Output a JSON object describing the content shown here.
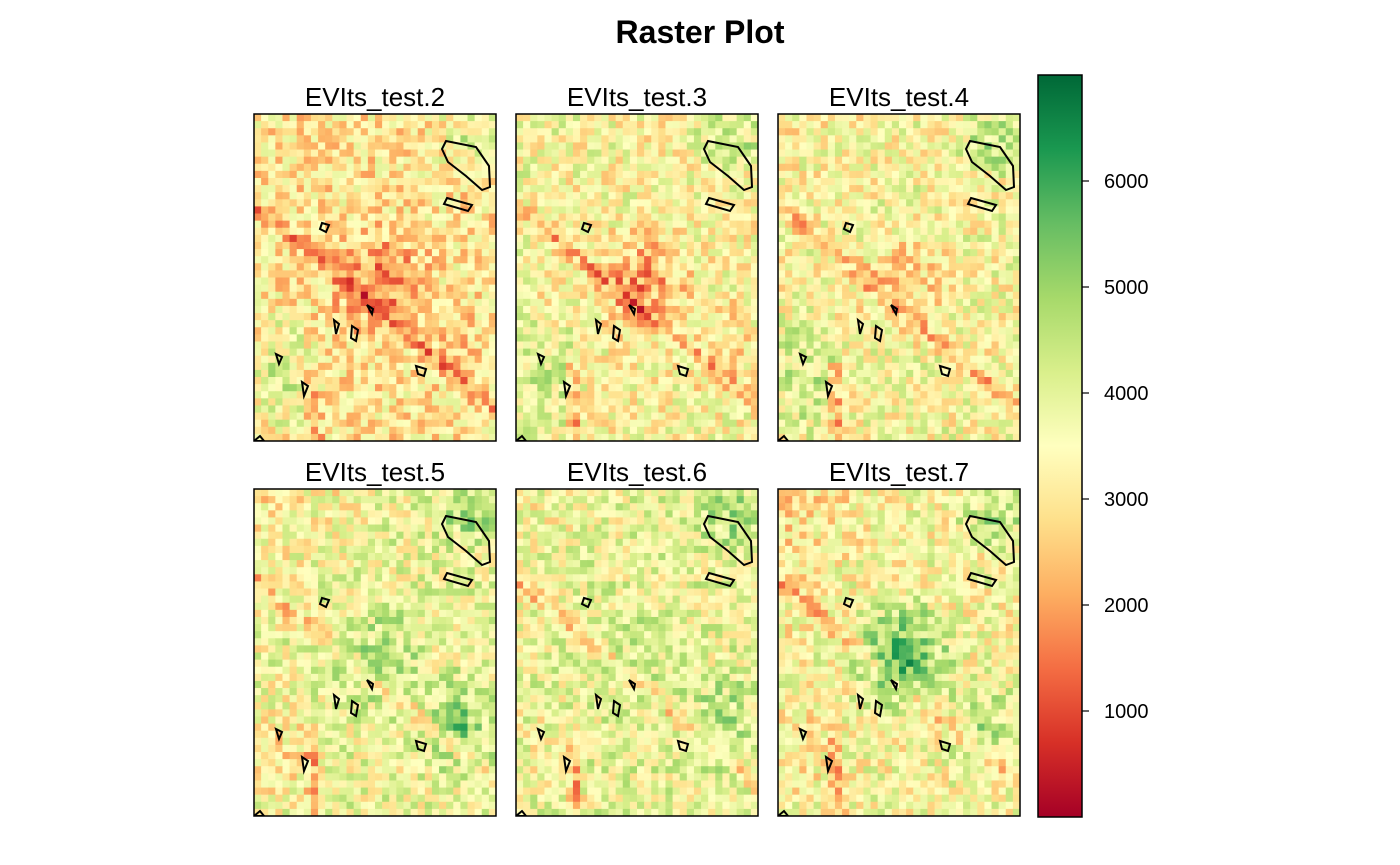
{
  "chart_data": {
    "type": "heatmap",
    "title": "Raster Plot",
    "panels": [
      {
        "name": "EVIts_test.2",
        "scene": {
          "center": 1500,
          "nw": 3000,
          "se": 2600,
          "sw": 4200,
          "general": 3000
        }
      },
      {
        "name": "EVIts_test.3",
        "scene": {
          "center": 1800,
          "nw": 3600,
          "se": 2700,
          "sw": 4300,
          "general": 3400
        }
      },
      {
        "name": "EVIts_test.4",
        "scene": {
          "center": 2600,
          "nw": 3300,
          "se": 3400,
          "sw": 4400,
          "general": 3500
        }
      },
      {
        "name": "EVIts_test.5",
        "scene": {
          "center": 4700,
          "nw": 3000,
          "se": 5200,
          "sw": 3000,
          "general": 3700
        }
      },
      {
        "name": "EVIts_test.6",
        "scene": {
          "center": 4300,
          "nw": 3400,
          "se": 4800,
          "sw": 3400,
          "general": 3800
        }
      },
      {
        "name": "EVIts_test.7",
        "scene": {
          "center": 6000,
          "nw": 2800,
          "se": 4600,
          "sw": 3100,
          "general": 3500
        }
      }
    ],
    "colorbar": {
      "min": 0,
      "max": 7000,
      "ticks": [
        1000,
        2000,
        3000,
        4000,
        5000,
        6000
      ],
      "palette": [
        "#a50026",
        "#d73027",
        "#f46d43",
        "#fdae61",
        "#fee08b",
        "#ffffbf",
        "#d9ef8b",
        "#a6d96a",
        "#66bd63",
        "#1a9850",
        "#006837"
      ]
    },
    "legend": "right",
    "grid": false
  }
}
